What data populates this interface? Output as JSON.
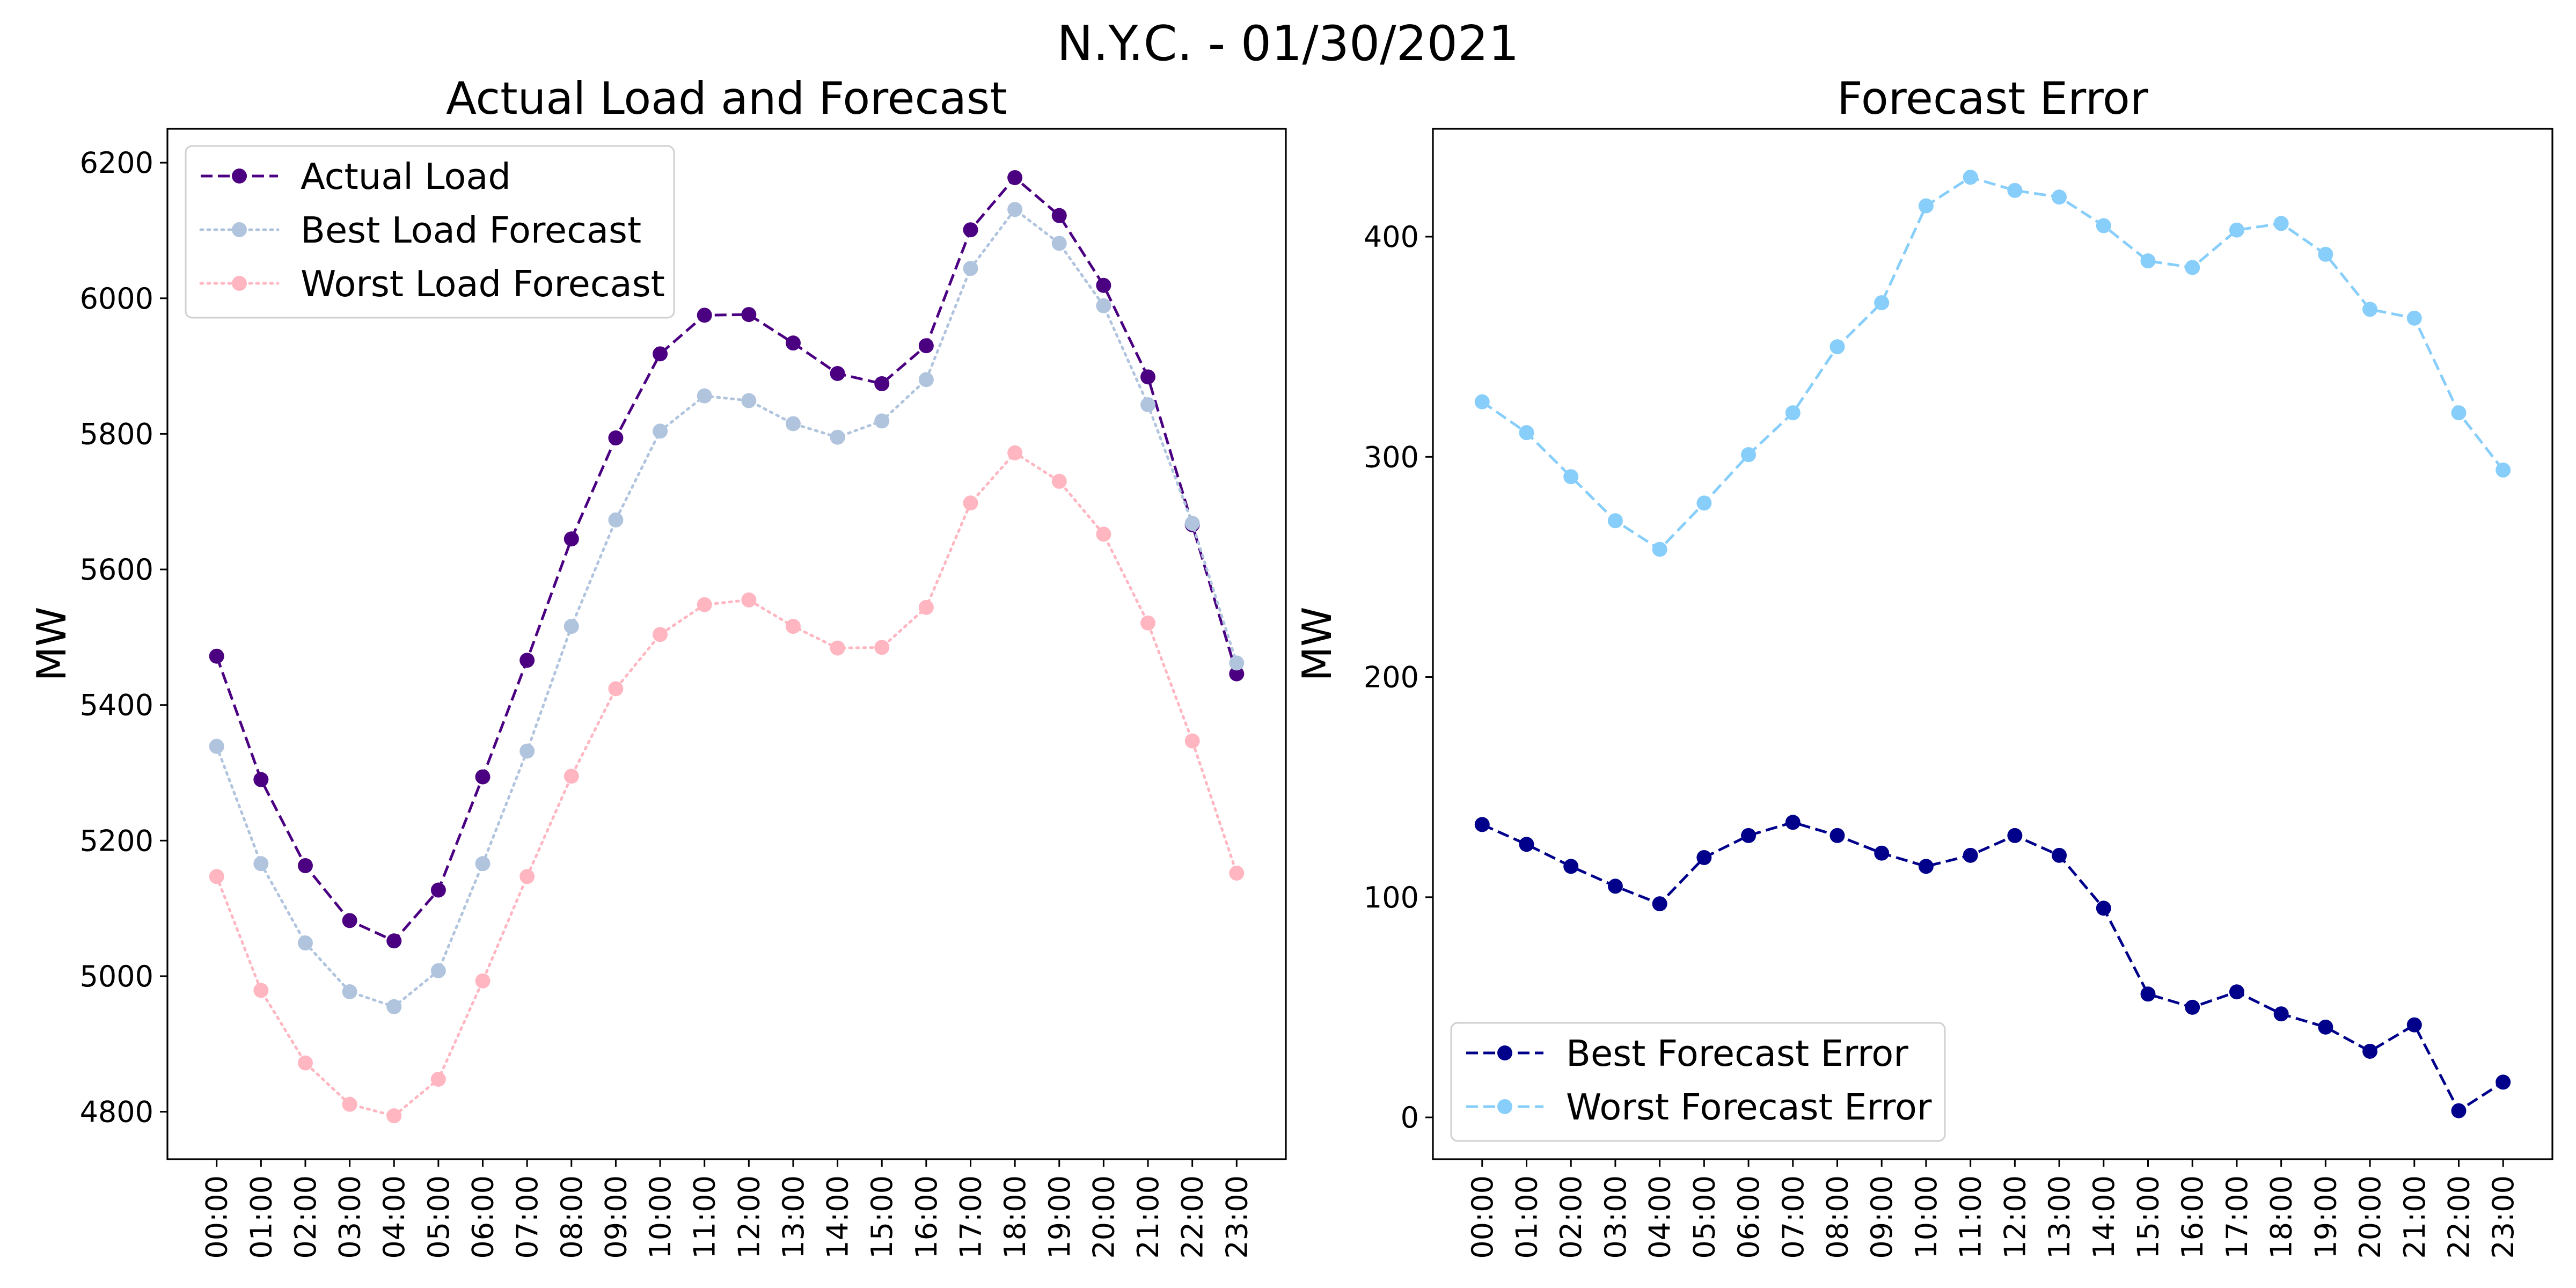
{
  "figure_title": "N.Y.C. - 01/30/2021",
  "chart_data": [
    {
      "type": "line",
      "title": "Actual Load and Forecast",
      "xlabel": "",
      "ylabel": "MW",
      "ylim": [
        4730,
        6250
      ],
      "yticks": [
        4800,
        5000,
        5200,
        5400,
        5600,
        5800,
        6000,
        6200
      ],
      "categories": [
        "00:00",
        "01:00",
        "02:00",
        "03:00",
        "04:00",
        "05:00",
        "06:00",
        "07:00",
        "08:00",
        "09:00",
        "10:00",
        "11:00",
        "12:00",
        "13:00",
        "14:00",
        "15:00",
        "16:00",
        "17:00",
        "18:00",
        "19:00",
        "20:00",
        "21:00",
        "22:00",
        "23:00"
      ],
      "legend_position": "upper-left",
      "grid": false,
      "series": [
        {
          "name": "Actual Load",
          "color": "#4B0082",
          "line_style": "dashed",
          "marker": "circle",
          "values": [
            5472,
            5290,
            5163,
            5082,
            5052,
            5127,
            5294,
            5466,
            5645,
            5794,
            5918,
            5975,
            5976,
            5934,
            5889,
            5874,
            5930,
            6101,
            6178,
            6122,
            6019,
            5884,
            5666,
            5446
          ]
        },
        {
          "name": "Best Load Forecast",
          "color": "#B0C4DE",
          "line_style": "dotted",
          "marker": "circle",
          "values": [
            5339,
            5166,
            5049,
            4977,
            4955,
            5008,
            5166,
            5332,
            5516,
            5673,
            5804,
            5856,
            5849,
            5815,
            5795,
            5819,
            5880,
            6044,
            6131,
            6081,
            5989,
            5843,
            5668,
            5462
          ]
        },
        {
          "name": "Worst Load Forecast",
          "color": "#FFB6C1",
          "line_style": "dotted",
          "marker": "circle",
          "values": [
            5147,
            4979,
            4872,
            4811,
            4794,
            4848,
            4993,
            5147,
            5295,
            5424,
            5504,
            5548,
            5555,
            5516,
            5484,
            5485,
            5544,
            5698,
            5772,
            5730,
            5652,
            5521,
            5347,
            5152
          ]
        }
      ]
    },
    {
      "type": "line",
      "title": "Forecast Error",
      "xlabel": "",
      "ylabel": "MW",
      "ylim": [
        -19,
        449
      ],
      "yticks": [
        0,
        100,
        200,
        300,
        400
      ],
      "categories": [
        "00:00",
        "01:00",
        "02:00",
        "03:00",
        "04:00",
        "05:00",
        "06:00",
        "07:00",
        "08:00",
        "09:00",
        "10:00",
        "11:00",
        "12:00",
        "13:00",
        "14:00",
        "15:00",
        "16:00",
        "17:00",
        "18:00",
        "19:00",
        "20:00",
        "21:00",
        "22:00",
        "23:00"
      ],
      "legend_position": "lower-left",
      "grid": false,
      "series": [
        {
          "name": "Best Forecast Error",
          "color": "#00008B",
          "line_style": "dashed",
          "marker": "circle",
          "values": [
            133,
            124,
            114,
            105,
            97,
            118,
            128,
            134,
            128,
            120,
            114,
            119,
            128,
            119,
            95,
            56,
            50,
            57,
            47,
            41,
            30,
            42,
            3,
            16
          ]
        },
        {
          "name": "Worst Forecast Error",
          "color": "#87CEFA",
          "line_style": "dashed",
          "marker": "circle",
          "values": [
            325,
            311,
            291,
            271,
            258,
            279,
            301,
            320,
            350,
            370,
            414,
            427,
            421,
            418,
            405,
            389,
            386,
            403,
            406,
            392,
            367,
            363,
            320,
            294
          ]
        }
      ]
    }
  ]
}
